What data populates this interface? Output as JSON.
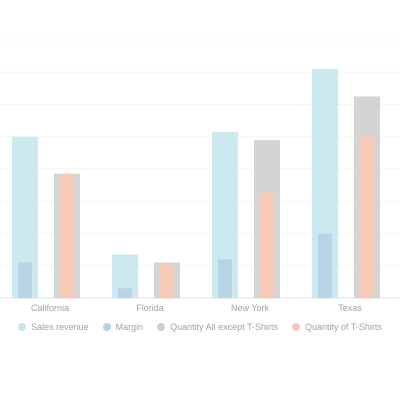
{
  "chart_data": {
    "type": "bar",
    "categories": [
      "California",
      "Florida",
      "New York",
      "Texas"
    ],
    "series": [
      {
        "name": "Sales revenue",
        "values": [
          100,
          27,
          103,
          142
        ],
        "color": "#c6e7ee"
      },
      {
        "name": "Margin",
        "values": [
          22,
          6,
          24,
          40
        ],
        "color": "#b6d3e3"
      },
      {
        "name": "Quantity All except T-Shirts",
        "values": [
          77,
          22,
          98,
          125
        ],
        "color": "#cfcfcf"
      },
      {
        "name": "Quantity of T-Shirts",
        "values": [
          77,
          21,
          65,
          100
        ],
        "color": "#f8c9b5"
      }
    ],
    "ylim": [
      0,
      160
    ],
    "grid": true,
    "legend_position": "bottom"
  }
}
